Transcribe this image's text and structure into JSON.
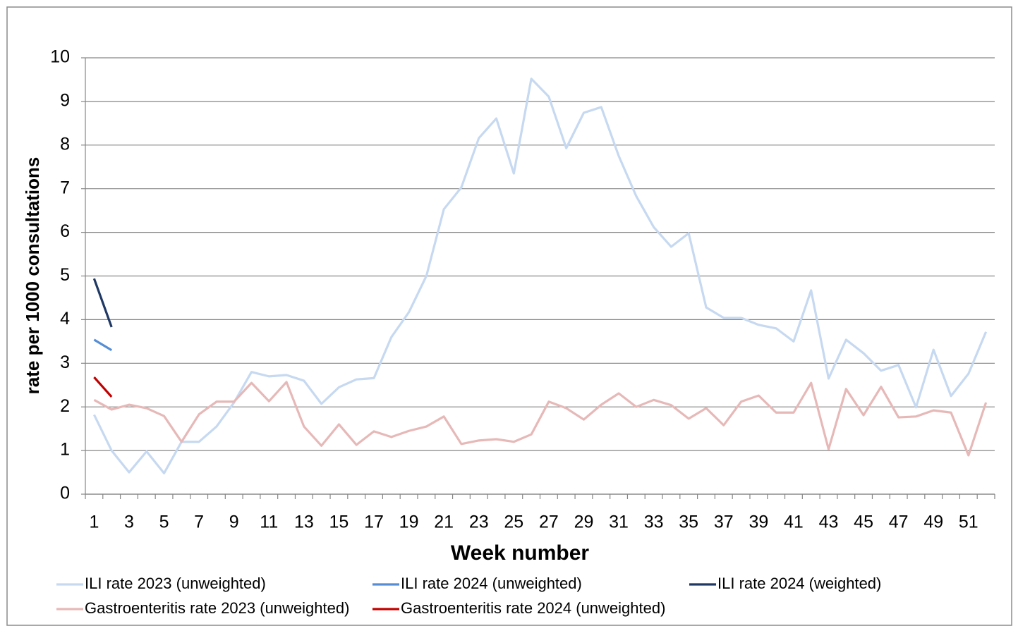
{
  "chart_data": {
    "type": "line",
    "x_label": "Week number",
    "y_label": "rate per 1000 consultations",
    "categories": [
      1,
      null,
      3,
      null,
      5,
      null,
      7,
      null,
      9,
      null,
      11,
      null,
      13,
      null,
      15,
      null,
      17,
      null,
      19,
      null,
      21,
      null,
      23,
      null,
      25,
      null,
      27,
      null,
      29,
      null,
      31,
      null,
      33,
      null,
      35,
      null,
      37,
      null,
      39,
      null,
      41,
      null,
      43,
      null,
      45,
      null,
      47,
      null,
      49,
      null,
      51,
      null
    ],
    "ylim": [
      0,
      10
    ],
    "yticks": [
      0,
      1,
      2,
      3,
      4,
      5,
      6,
      7,
      8,
      9,
      10
    ],
    "grid": true,
    "legend": "bottom",
    "series": [
      {
        "name": "ILI rate 2023 (unweighted)",
        "color": "#c6d9f1",
        "values": [
          1.82,
          1.0,
          0.5,
          0.98,
          0.48,
          1.2,
          1.2,
          1.55,
          2.1,
          2.8,
          2.7,
          2.73,
          2.6,
          2.07,
          2.45,
          2.63,
          2.66,
          3.6,
          4.17,
          5.0,
          6.53,
          7.03,
          8.16,
          8.61,
          7.35,
          9.52,
          9.11,
          7.93,
          8.74,
          8.87,
          7.75,
          6.83,
          6.12,
          5.67,
          5.98,
          4.28,
          4.04,
          4.04,
          3.88,
          3.8,
          3.5,
          4.67,
          2.65,
          3.54,
          3.23,
          2.83,
          2.96,
          1.99,
          3.31,
          2.25,
          2.76,
          3.72
        ]
      },
      {
        "name": "ILI rate 2024 (unweighted)",
        "color": "#558ed5",
        "values": [
          3.54,
          3.3,
          null,
          null,
          null,
          null,
          null,
          null,
          null,
          null,
          null,
          null,
          null,
          null,
          null,
          null,
          null,
          null,
          null,
          null,
          null,
          null,
          null,
          null,
          null,
          null,
          null,
          null,
          null,
          null,
          null,
          null,
          null,
          null,
          null,
          null,
          null,
          null,
          null,
          null,
          null,
          null,
          null,
          null,
          null,
          null,
          null,
          null,
          null,
          null,
          null,
          null
        ]
      },
      {
        "name": "ILI rate 2024 (weighted)",
        "color": "#1f3864",
        "values": [
          4.94,
          3.83,
          null,
          null,
          null,
          null,
          null,
          null,
          null,
          null,
          null,
          null,
          null,
          null,
          null,
          null,
          null,
          null,
          null,
          null,
          null,
          null,
          null,
          null,
          null,
          null,
          null,
          null,
          null,
          null,
          null,
          null,
          null,
          null,
          null,
          null,
          null,
          null,
          null,
          null,
          null,
          null,
          null,
          null,
          null,
          null,
          null,
          null,
          null,
          null,
          null,
          null
        ]
      },
      {
        "name": "Gastroenteritis rate 2023 (unweighted)",
        "color": "#e6b9b8",
        "values": [
          2.16,
          1.94,
          2.05,
          1.97,
          1.79,
          1.2,
          1.83,
          2.12,
          2.12,
          2.55,
          2.13,
          2.57,
          1.55,
          1.11,
          1.6,
          1.13,
          1.44,
          1.31,
          1.45,
          1.55,
          1.78,
          1.15,
          1.23,
          1.26,
          1.2,
          1.37,
          2.12,
          1.97,
          1.71,
          2.05,
          2.31,
          2.0,
          2.16,
          2.04,
          1.73,
          1.97,
          1.58,
          2.12,
          2.26,
          1.87,
          1.87,
          2.55,
          1.03,
          2.41,
          1.81,
          2.46,
          1.76,
          1.78,
          1.92,
          1.87,
          0.89,
          2.1
        ]
      },
      {
        "name": "Gastroenteritis rate 2024 (unweighted)",
        "color": "#c00000",
        "values": [
          2.68,
          2.23,
          null,
          null,
          null,
          null,
          null,
          null,
          null,
          null,
          null,
          null,
          null,
          null,
          null,
          null,
          null,
          null,
          null,
          null,
          null,
          null,
          null,
          null,
          null,
          null,
          null,
          null,
          null,
          null,
          null,
          null,
          null,
          null,
          null,
          null,
          null,
          null,
          null,
          null,
          null,
          null,
          null,
          null,
          null,
          null,
          null,
          null,
          null,
          null,
          null,
          null
        ]
      }
    ]
  }
}
